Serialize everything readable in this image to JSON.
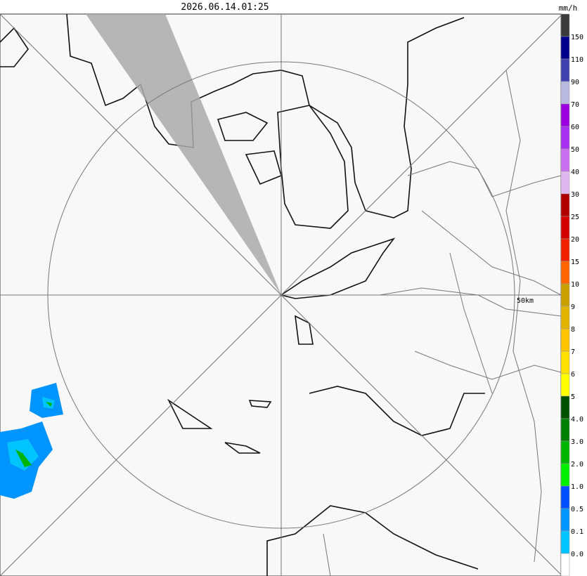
{
  "header": {
    "timestamp": "2026.06.14.01:25"
  },
  "map": {
    "range_label": "50km"
  },
  "legend": {
    "unit": "mm/h",
    "labels": [
      "150",
      "110",
      "90",
      "70",
      "60",
      "50",
      "40",
      "30",
      "25",
      "20",
      "15",
      "10",
      "9",
      "8",
      "7",
      "6",
      "5",
      "4.0",
      "3.0",
      "2.0",
      "1.0",
      "0.5",
      "0.1",
      "0.0"
    ],
    "colors": [
      "#3a3a3a",
      "#00008c",
      "#4040b0",
      "#b8b8e0",
      "#9a00e0",
      "#a830f0",
      "#c870f0",
      "#e0b8f0",
      "#b00000",
      "#d40000",
      "#f02000",
      "#ff6400",
      "#c8a000",
      "#e0b400",
      "#ffc400",
      "#ffe000",
      "#ffff00",
      "#005000",
      "#008000",
      "#00b400",
      "#00f000",
      "#0050ff",
      "#0094ff",
      "#00c4ff",
      "#ffffff"
    ]
  }
}
